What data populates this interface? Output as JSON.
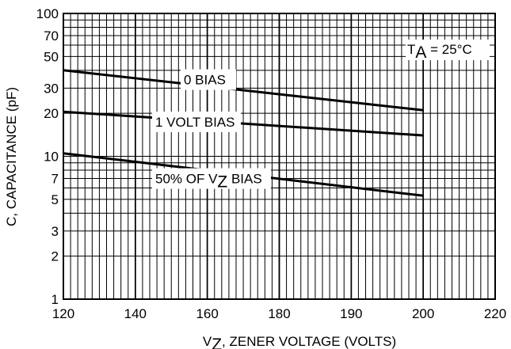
{
  "chart_data": {
    "type": "line",
    "title": "",
    "xlabel": {
      "main": "V",
      "sub": "Z",
      "rest": ", ZENER VOLTAGE (VOLTS)"
    },
    "ylabel": "C, CAPACITANCE (pF)",
    "y_scale": "log",
    "ylim": [
      1,
      100
    ],
    "x_tick_labels": [
      "120",
      "140",
      "160",
      "180",
      "190",
      "200",
      "220"
    ],
    "y_tick_values": [
      1,
      2,
      3,
      5,
      7,
      10,
      20,
      30,
      50,
      70,
      100
    ],
    "y_tick_labels": [
      "1",
      "2",
      "3",
      "5",
      "7",
      "10",
      "20",
      "30",
      "50",
      "70",
      "100"
    ],
    "grid": true,
    "annotation": {
      "main": "T",
      "sub": "A",
      "rest": " = 25°C"
    },
    "series": [
      {
        "name": "0 BIAS",
        "x": [
          "120",
          "200"
        ],
        "values": [
          40,
          21
        ]
      },
      {
        "name": "1 VOLT BIAS",
        "x": [
          "120",
          "200"
        ],
        "values": [
          20.5,
          14
        ]
      },
      {
        "name": {
          "main": "50% OF V",
          "sub": "Z",
          "rest": " BIAS"
        },
        "x": [
          "120",
          "200"
        ],
        "values": [
          10.5,
          5.3
        ]
      }
    ]
  }
}
